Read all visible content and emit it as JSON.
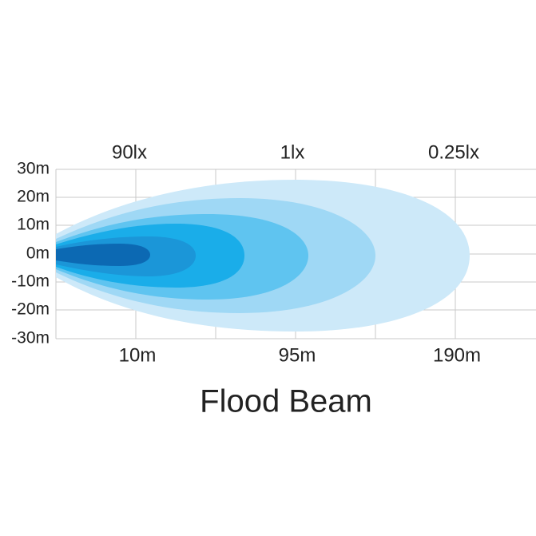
{
  "title": "Flood Beam",
  "y_labels": [
    "30m",
    "20m",
    "10m",
    "0m",
    "-10m",
    "-20m",
    "-30m"
  ],
  "lux_labels": [
    "90lx",
    "1lx",
    "0.25lx"
  ],
  "distance_labels": [
    "10m",
    "95m",
    "190m"
  ]
}
